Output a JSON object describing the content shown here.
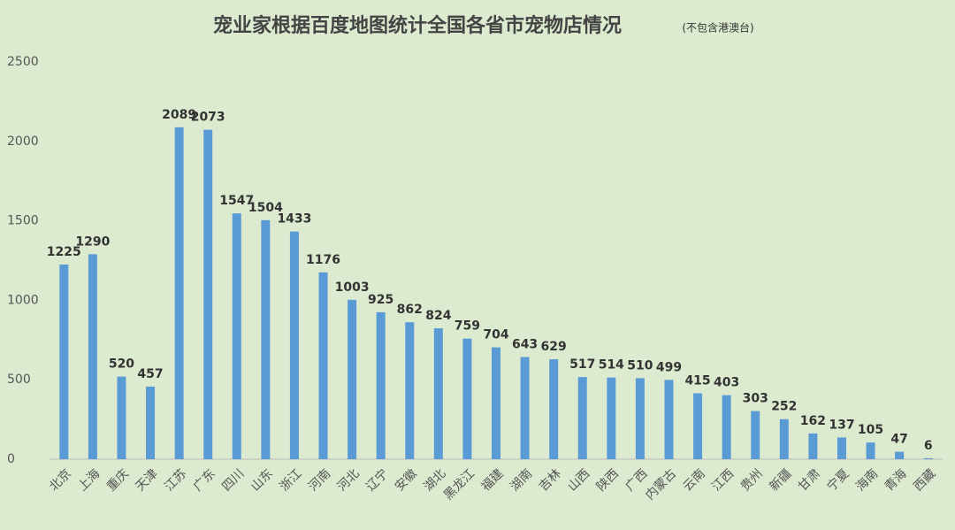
{
  "chart_data": {
    "type": "bar",
    "title": "宠业家根据百度地图统计全国各省市宠物店情况",
    "subtitle": "(不包含港澳台)",
    "categories": [
      "北京",
      "上海",
      "重庆",
      "天津",
      "江苏",
      "广东",
      "四川",
      "山东",
      "浙江",
      "河南",
      "河北",
      "辽宁",
      "安徽",
      "湖北",
      "黑龙江",
      "福建",
      "湖南",
      "吉林",
      "山西",
      "陕西",
      "广西",
      "内蒙古",
      "云南",
      "江西",
      "贵州",
      "新疆",
      "甘肃",
      "宁夏",
      "海南",
      "青海",
      "西藏"
    ],
    "values": [
      1225,
      1290,
      520,
      457,
      2089,
      2073,
      1547,
      1504,
      1433,
      1176,
      1003,
      925,
      862,
      824,
      759,
      704,
      643,
      629,
      517,
      514,
      510,
      499,
      415,
      403,
      303,
      252,
      162,
      137,
      105,
      47,
      6
    ],
    "color": "#5b9bd5",
    "ylim": [
      0,
      2500
    ],
    "yticks": [
      0,
      500,
      1000,
      1500,
      2000,
      2500
    ],
    "grid": false
  }
}
